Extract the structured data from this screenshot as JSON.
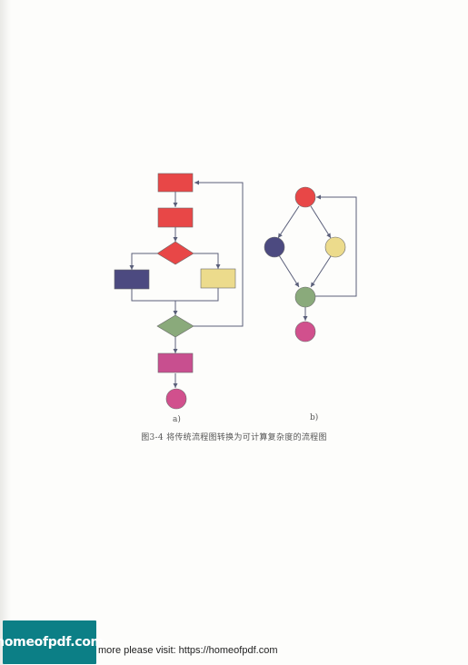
{
  "figure": {
    "caption": "图3-4  将传统流程图转换为可计算复杂度的流程图",
    "panel_a_label": "a)",
    "panel_b_label": "b)"
  },
  "colors": {
    "red": "#e84747",
    "navy": "#4c4a80",
    "yellow": "#ecdb8c",
    "green": "#8aaa7b",
    "magenta": "#d1508d",
    "purple": "#c84f8f",
    "line": "#5a5f7a"
  },
  "footer": {
    "logo_text": "homeofpdf.com",
    "link_text": "more please visit: https://homeofpdf.com"
  }
}
